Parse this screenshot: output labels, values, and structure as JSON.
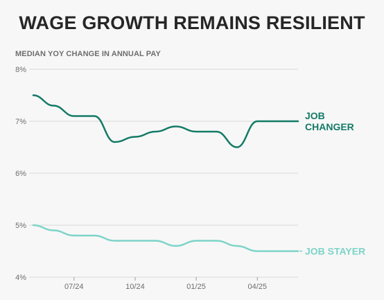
{
  "chart_data": {
    "type": "line",
    "title": "WAGE GROWTH REMAINS RESILIENT",
    "subtitle": "MEDIAN YOY CHANGE IN ANNUAL PAY",
    "ylim": [
      4,
      8
    ],
    "yticks": [
      "8%",
      "7%",
      "6%",
      "5%",
      "4%"
    ],
    "ytick_values": [
      8,
      7,
      6,
      5,
      4
    ],
    "xlim": [
      0,
      13
    ],
    "xticks": [
      {
        "label": "07/24",
        "index": 2
      },
      {
        "label": "10/24",
        "index": 5
      },
      {
        "label": "01/25",
        "index": 8
      },
      {
        "label": "04/25",
        "index": 11
      }
    ],
    "grid": true,
    "series": [
      {
        "name": "JOB CHANGER",
        "color": "#137a66",
        "values": [
          7.5,
          7.3,
          7.1,
          7.1,
          6.6,
          6.7,
          6.8,
          6.9,
          6.8,
          6.8,
          6.5,
          7.0,
          7.0,
          7.0
        ]
      },
      {
        "name": "JOB STAYER",
        "color": "#7dd4c8",
        "values": [
          5.0,
          4.9,
          4.8,
          4.8,
          4.7,
          4.7,
          4.7,
          4.6,
          4.7,
          4.7,
          4.6,
          4.5,
          4.5,
          4.5
        ]
      }
    ]
  }
}
